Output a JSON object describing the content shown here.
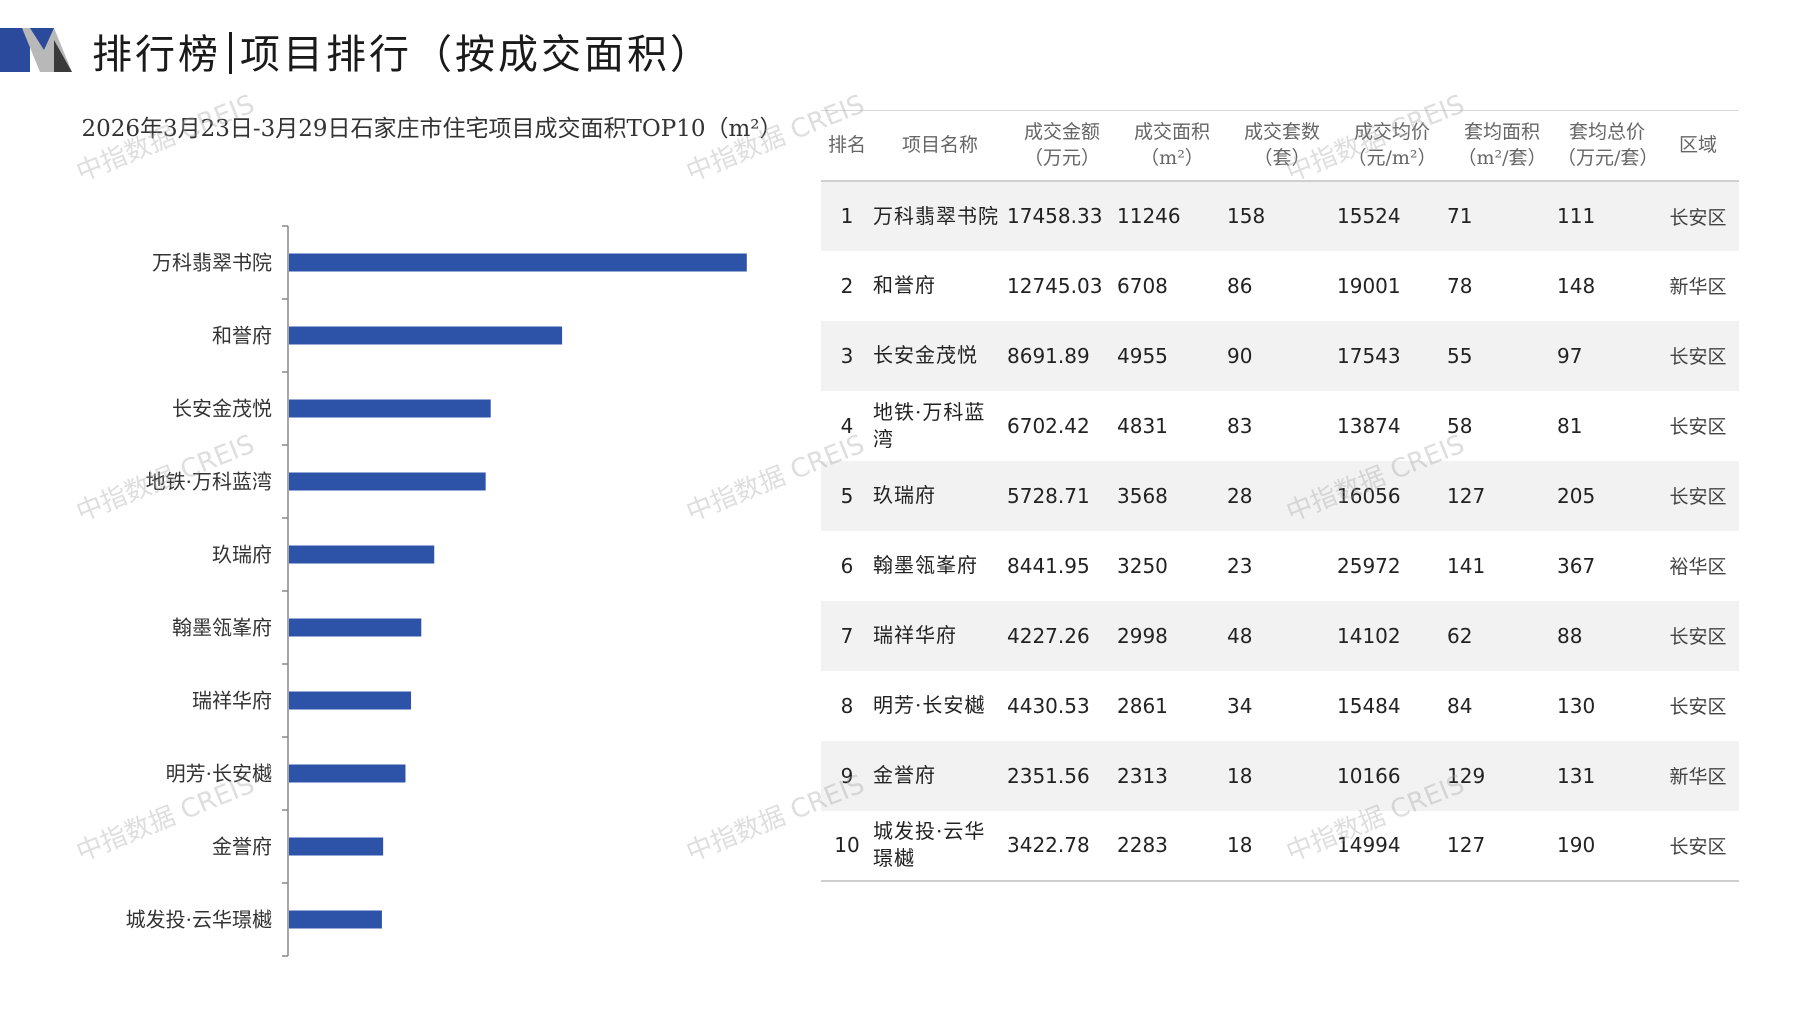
{
  "header": {
    "title_left": "排行榜",
    "title_right": "项目排行（按成交面积）"
  },
  "chart_title": "2026年3月23日-3月29日石家庄市住宅项目成交面积TOP10（m²）",
  "chart_data": {
    "type": "bar",
    "orientation": "horizontal",
    "title": "2026年3月23日-3月29日石家庄市住宅项目成交面积TOP10（m²）",
    "categories": [
      "万科翡翠书院",
      "和誉府",
      "长安金茂悦",
      "地铁·万科蓝湾",
      "玖瑞府",
      "翰墨瓴峯府",
      "瑞祥华府",
      "明芳·长安樾",
      "金誉府",
      "城发投·云华璟樾"
    ],
    "values": [
      11246,
      6708,
      4955,
      4831,
      3568,
      3250,
      2998,
      2861,
      2313,
      2283
    ],
    "bar_color": "#2c53a8",
    "xlim": [
      0,
      11300
    ]
  },
  "table": {
    "headers": [
      [
        "排名"
      ],
      [
        "项目名称"
      ],
      [
        "成交金额",
        "（万元）"
      ],
      [
        "成交面积",
        "（m²）"
      ],
      [
        "成交套数",
        "（套）"
      ],
      [
        "成交均价",
        "（元/m²）"
      ],
      [
        "套均面积",
        "（m²/套）"
      ],
      [
        "套均总价",
        "（万元/套）"
      ],
      [
        "区域"
      ]
    ],
    "rows": [
      {
        "rank": "1",
        "name": "万科翡翠书院",
        "amount": "17458.33",
        "area": "11246",
        "units": "158",
        "price": "15524",
        "avg_area": "71",
        "avg_total": "111",
        "district": "长安区"
      },
      {
        "rank": "2",
        "name": "和誉府",
        "amount": "12745.03",
        "area": "6708",
        "units": "86",
        "price": "19001",
        "avg_area": "78",
        "avg_total": "148",
        "district": "新华区"
      },
      {
        "rank": "3",
        "name": "长安金茂悦",
        "amount": "8691.89",
        "area": "4955",
        "units": "90",
        "price": "17543",
        "avg_area": "55",
        "avg_total": "97",
        "district": "长安区"
      },
      {
        "rank": "4",
        "name": "地铁·万科蓝湾",
        "amount": "6702.42",
        "area": "4831",
        "units": "83",
        "price": "13874",
        "avg_area": "58",
        "avg_total": "81",
        "district": "长安区"
      },
      {
        "rank": "5",
        "name": "玖瑞府",
        "amount": "5728.71",
        "area": "3568",
        "units": "28",
        "price": "16056",
        "avg_area": "127",
        "avg_total": "205",
        "district": "长安区"
      },
      {
        "rank": "6",
        "name": "翰墨瓴峯府",
        "amount": "8441.95",
        "area": "3250",
        "units": "23",
        "price": "25972",
        "avg_area": "141",
        "avg_total": "367",
        "district": "裕华区"
      },
      {
        "rank": "7",
        "name": "瑞祥华府",
        "amount": "4227.26",
        "area": "2998",
        "units": "48",
        "price": "14102",
        "avg_area": "62",
        "avg_total": "88",
        "district": "长安区"
      },
      {
        "rank": "8",
        "name": "明芳·长安樾",
        "amount": "4430.53",
        "area": "2861",
        "units": "34",
        "price": "15484",
        "avg_area": "84",
        "avg_total": "130",
        "district": "长安区"
      },
      {
        "rank": "9",
        "name": "金誉府",
        "amount": "2351.56",
        "area": "2313",
        "units": "18",
        "price": "10166",
        "avg_area": "129",
        "avg_total": "131",
        "district": "新华区"
      },
      {
        "rank": "10",
        "name": "城发投·云华璟樾",
        "amount": "3422.78",
        "area": "2283",
        "units": "18",
        "price": "14994",
        "avg_area": "127",
        "avg_total": "190",
        "district": "长安区"
      }
    ]
  },
  "watermark": "中指数据 CREIS"
}
